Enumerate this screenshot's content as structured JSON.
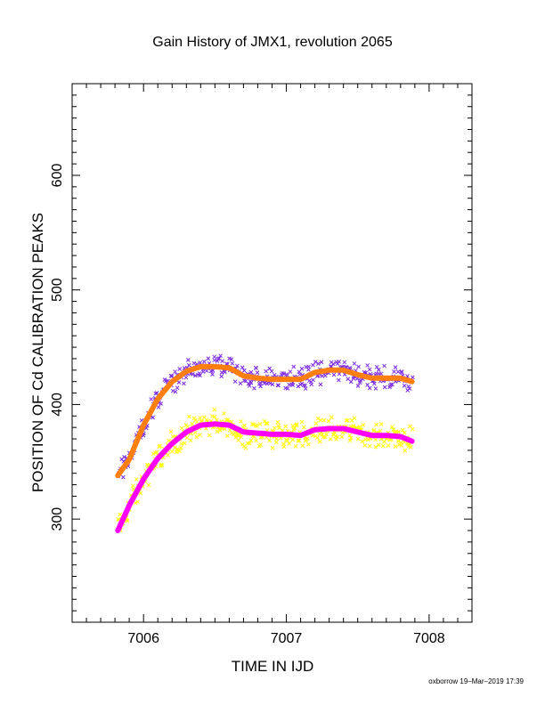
{
  "chart_data": {
    "type": "scatter",
    "title": "Gain History of JMX1, revolution 2065",
    "xlabel": "TIME IN IJD",
    "ylabel": "POSITION OF Cd CALIBRATION PEAKS",
    "xlim": [
      7005.5,
      7008.3
    ],
    "ylim": [
      210,
      680
    ],
    "x_ticks": [
      7006,
      7007,
      7008
    ],
    "x_tick_labels": [
      "7006",
      "7007",
      "7008"
    ],
    "y_ticks": [
      300,
      400,
      500,
      600
    ],
    "y_tick_labels": [
      "300",
      "400",
      "500",
      "600"
    ],
    "grid": false,
    "legend": "none",
    "series": [
      {
        "role": "upper-peak-fit",
        "color": "#ff7f0e",
        "x": [
          7005.82,
          7005.9,
          7006.0,
          7006.1,
          7006.2,
          7006.3,
          7006.4,
          7006.5,
          7006.6,
          7006.7,
          7006.8,
          7006.9,
          7007.0,
          7007.1,
          7007.2,
          7007.3,
          7007.4,
          7007.5,
          7007.6,
          7007.7,
          7007.8,
          7007.88
        ],
        "y": [
          338,
          352,
          382,
          405,
          420,
          429,
          433,
          433,
          432,
          425,
          423,
          422,
          422,
          422,
          428,
          430,
          430,
          426,
          423,
          423,
          423,
          420
        ]
      },
      {
        "role": "lower-peak-fit",
        "color": "#ff00ff",
        "x": [
          7005.82,
          7005.9,
          7006.0,
          7006.1,
          7006.2,
          7006.3,
          7006.4,
          7006.5,
          7006.6,
          7006.7,
          7006.8,
          7006.9,
          7007.0,
          7007.1,
          7007.2,
          7007.3,
          7007.4,
          7007.5,
          7007.6,
          7007.7,
          7007.8,
          7007.88
        ],
        "y": [
          290,
          312,
          335,
          353,
          366,
          376,
          382,
          383,
          382,
          376,
          375,
          374,
          374,
          373,
          378,
          379,
          379,
          376,
          373,
          373,
          372,
          368
        ]
      },
      {
        "role": "upper-peak-data",
        "color": "#7b2be2",
        "center": [
          7005.82,
          7005.9,
          7006.0,
          7006.1,
          7006.2,
          7006.3,
          7006.4,
          7006.5,
          7006.6,
          7006.7,
          7006.8,
          7006.9,
          7007.0,
          7007.1,
          7007.2,
          7007.3,
          7007.4,
          7007.5,
          7007.6,
          7007.7,
          7007.8,
          7007.88
        ],
        "spread": 12
      },
      {
        "role": "lower-peak-data",
        "color": "#ffff00",
        "center": [
          7005.82,
          7005.9,
          7006.0,
          7006.1,
          7006.2,
          7006.3,
          7006.4,
          7006.5,
          7006.6,
          7006.7,
          7006.8,
          7006.9,
          7007.0,
          7007.1,
          7007.2,
          7007.3,
          7007.4,
          7007.5,
          7007.6,
          7007.7,
          7007.8,
          7007.88
        ],
        "spread": 14
      }
    ]
  },
  "footer": "oxborrow 19–Mar–2019 17:39"
}
